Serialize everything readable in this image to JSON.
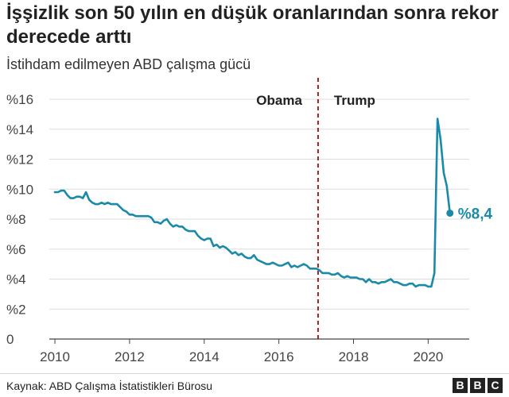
{
  "title": "İşşizlik son 50 yılın en düşük oranlarından sonra rekor derecede arttı",
  "subtitle": "İstihdam edilmeyen ABD çalışma gücü",
  "source": "Kaynak: ABD Çalışma İstatistikleri Bürosu",
  "logo": {
    "letters": [
      "B",
      "B",
      "C"
    ]
  },
  "colors": {
    "line": "#1a8aa8",
    "divider": "#a01e1e",
    "grid": "#dddddd",
    "text": "#222222"
  },
  "chart_data": {
    "type": "line",
    "title": "İşşizlik son 50 yılın en düşük oranlarından sonra rekor derecede arttı",
    "subtitle": "İstihdam edilmeyen ABD çalışma gücü",
    "xlabel": "",
    "ylabel": "",
    "xlim": [
      2009.85,
      2021.1
    ],
    "ylim": [
      0,
      16
    ],
    "grid": true,
    "x_ticks": [
      {
        "value": 2010,
        "label": "2010"
      },
      {
        "value": 2012,
        "label": "2012"
      },
      {
        "value": 2014,
        "label": "2014"
      },
      {
        "value": 2016,
        "label": "2016"
      },
      {
        "value": 2018,
        "label": "2018"
      },
      {
        "value": 2020,
        "label": "2020"
      }
    ],
    "y_ticks": [
      {
        "value": 0,
        "label": "0"
      },
      {
        "value": 2,
        "label": "%2"
      },
      {
        "value": 4,
        "label": "%4"
      },
      {
        "value": 6,
        "label": "%6"
      },
      {
        "value": 8,
        "label": "%8"
      },
      {
        "value": 10,
        "label": "%10"
      },
      {
        "value": 12,
        "label": "%12"
      },
      {
        "value": 14,
        "label": "%14"
      },
      {
        "value": 16,
        "label": "%16"
      }
    ],
    "divider": {
      "x": 2017.05,
      "left_label": "Obama",
      "right_label": "Trump"
    },
    "end_label": "%8,4",
    "series": [
      {
        "x": [
          2010.0,
          2010.083,
          2010.167,
          2010.25,
          2010.333,
          2010.417,
          2010.5,
          2010.583,
          2010.667,
          2010.75,
          2010.833,
          2010.917,
          2011.0,
          2011.083,
          2011.167,
          2011.25,
          2011.333,
          2011.417,
          2011.5,
          2011.583,
          2011.667,
          2011.75,
          2011.833,
          2011.917,
          2012.0,
          2012.083,
          2012.167,
          2012.25,
          2012.333,
          2012.417,
          2012.5,
          2012.583,
          2012.667,
          2012.75,
          2012.833,
          2012.917,
          2013.0,
          2013.083,
          2013.167,
          2013.25,
          2013.333,
          2013.417,
          2013.5,
          2013.583,
          2013.667,
          2013.75,
          2013.833,
          2013.917,
          2014.0,
          2014.083,
          2014.167,
          2014.25,
          2014.333,
          2014.417,
          2014.5,
          2014.583,
          2014.667,
          2014.75,
          2014.833,
          2014.917,
          2015.0,
          2015.083,
          2015.167,
          2015.25,
          2015.333,
          2015.417,
          2015.5,
          2015.583,
          2015.667,
          2015.75,
          2015.833,
          2015.917,
          2016.0,
          2016.083,
          2016.167,
          2016.25,
          2016.333,
          2016.417,
          2016.5,
          2016.583,
          2016.667,
          2016.75,
          2016.833,
          2016.917,
          2017.0,
          2017.083,
          2017.167,
          2017.25,
          2017.333,
          2017.417,
          2017.5,
          2017.583,
          2017.667,
          2017.75,
          2017.833,
          2017.917,
          2018.0,
          2018.083,
          2018.167,
          2018.25,
          2018.333,
          2018.417,
          2018.5,
          2018.583,
          2018.667,
          2018.75,
          2018.833,
          2018.917,
          2019.0,
          2019.083,
          2019.167,
          2019.25,
          2019.333,
          2019.417,
          2019.5,
          2019.583,
          2019.667,
          2019.75,
          2019.833,
          2019.917,
          2020.0,
          2020.083,
          2020.167,
          2020.25,
          2020.333,
          2020.417,
          2020.5,
          2020.583
        ],
        "values": [
          9.8,
          9.8,
          9.9,
          9.9,
          9.6,
          9.4,
          9.4,
          9.5,
          9.5,
          9.4,
          9.8,
          9.3,
          9.1,
          9.0,
          9.0,
          9.1,
          9.0,
          9.1,
          9.0,
          9.0,
          9.0,
          8.8,
          8.6,
          8.5,
          8.3,
          8.3,
          8.2,
          8.2,
          8.2,
          8.2,
          8.2,
          8.1,
          7.8,
          7.8,
          7.7,
          7.9,
          8.0,
          7.7,
          7.5,
          7.6,
          7.5,
          7.5,
          7.3,
          7.2,
          7.2,
          7.2,
          6.9,
          6.7,
          6.6,
          6.7,
          6.7,
          6.2,
          6.3,
          6.1,
          6.2,
          6.1,
          5.9,
          5.7,
          5.8,
          5.6,
          5.7,
          5.5,
          5.4,
          5.4,
          5.6,
          5.3,
          5.2,
          5.1,
          5.0,
          5.0,
          5.1,
          5.0,
          4.9,
          4.9,
          5.0,
          5.1,
          4.8,
          4.9,
          4.8,
          4.9,
          5.0,
          4.9,
          4.7,
          4.7,
          4.7,
          4.6,
          4.4,
          4.4,
          4.4,
          4.3,
          4.3,
          4.4,
          4.2,
          4.1,
          4.2,
          4.1,
          4.1,
          4.1,
          4.0,
          4.0,
          3.8,
          4.0,
          3.8,
          3.8,
          3.7,
          3.8,
          3.8,
          3.9,
          4.0,
          3.8,
          3.8,
          3.7,
          3.6,
          3.6,
          3.7,
          3.7,
          3.5,
          3.6,
          3.6,
          3.6,
          3.5,
          3.5,
          4.4,
          14.7,
          13.3,
          11.1,
          10.2,
          8.4
        ]
      }
    ]
  }
}
